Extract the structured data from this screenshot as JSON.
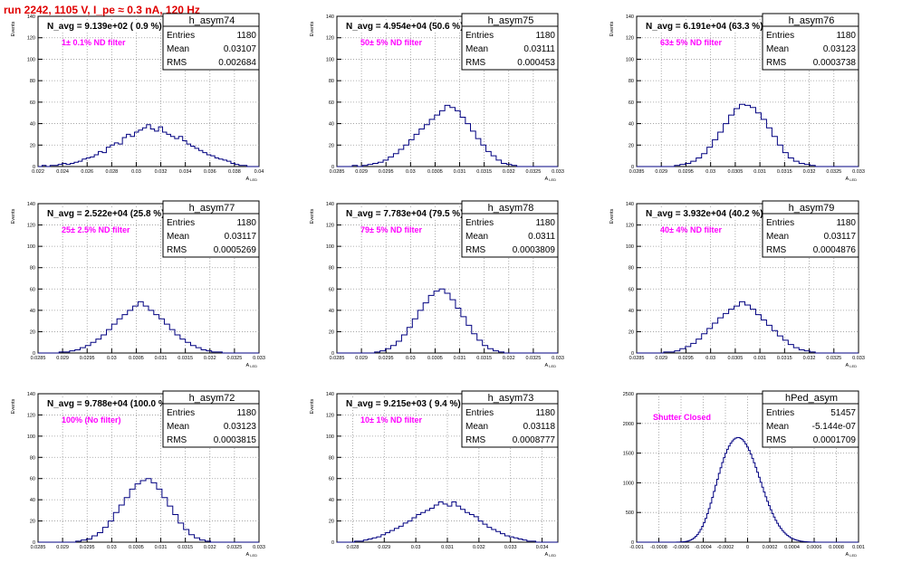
{
  "header": {
    "run_title": "run 2242,  1105 V, I_pe ≈ 0.3 nA, 120 Hz"
  },
  "style": {
    "axis_color": "#000000",
    "hist_color": "#000080",
    "annotation_color": "#ff00ff",
    "title_color": "#e00000",
    "grid": "dotted"
  },
  "chart_data": [
    {
      "type": "histogram",
      "name": "h_asym74",
      "ylabel": "Events",
      "xlabel": "A_LED",
      "navg": "N_avg = 9.139e+02 ( 0.9 %)",
      "filter": "1± 0.1% ND filter",
      "stats": {
        "entries": "1180",
        "mean": "0.03107",
        "rms": "0.002684"
      },
      "xlim": [
        0.022,
        0.04
      ],
      "ylim": [
        0,
        140
      ],
      "xticks": [
        "0.022",
        "0.024",
        "0.026",
        "0.028",
        "0.03",
        "0.032",
        "0.034",
        "0.036",
        "0.038",
        "0.04"
      ],
      "yticks": [
        "0",
        "20",
        "40",
        "60",
        "80",
        "100",
        "120",
        "140"
      ],
      "counts": [
        0,
        1,
        0,
        1,
        1,
        2,
        3,
        2,
        3,
        4,
        5,
        7,
        8,
        9,
        11,
        14,
        13,
        18,
        20,
        22,
        21,
        27,
        30,
        28,
        32,
        34,
        36,
        39,
        35,
        33,
        37,
        32,
        30,
        28,
        26,
        28,
        24,
        21,
        19,
        17,
        15,
        13,
        11,
        10,
        8,
        7,
        6,
        5,
        3,
        2,
        1,
        1,
        0,
        0,
        0
      ]
    },
    {
      "type": "histogram",
      "name": "h_asym75",
      "ylabel": "Events",
      "xlabel": "A_LED",
      "navg": "N_avg = 4.954e+04 (50.6 %)",
      "filter": "50± 5% ND filter",
      "stats": {
        "entries": "1180",
        "mean": "0.03111",
        "rms": "0.000453"
      },
      "xlim": [
        0.0285,
        0.033
      ],
      "ylim": [
        0,
        140
      ],
      "xticks": [
        "0.0285",
        "0.029",
        "0.0295",
        "0.03",
        "0.0305",
        "0.031",
        "0.0315",
        "0.032",
        "0.0325",
        "0.033"
      ],
      "yticks": [
        "0",
        "20",
        "40",
        "60",
        "80",
        "100",
        "120",
        "140"
      ],
      "counts": [
        0,
        0,
        0,
        1,
        0,
        1,
        2,
        3,
        4,
        6,
        9,
        12,
        16,
        20,
        25,
        30,
        35,
        39,
        44,
        48,
        52,
        57,
        55,
        52,
        46,
        40,
        33,
        26,
        20,
        14,
        10,
        6,
        3,
        2,
        1,
        0,
        0,
        0,
        0,
        0,
        0,
        0,
        0
      ]
    },
    {
      "type": "histogram",
      "name": "h_asym76",
      "ylabel": "Events",
      "xlabel": "A_LED",
      "navg": "N_avg = 6.191e+04 (63.3 %)",
      "filter": "63± 5% ND filter",
      "stats": {
        "entries": "1180",
        "mean": "0.03123",
        "rms": "0.0003738"
      },
      "xlim": [
        0.0285,
        0.033
      ],
      "ylim": [
        0,
        140
      ],
      "xticks": [
        "0.0285",
        "0.029",
        "0.0295",
        "0.03",
        "0.0305",
        "0.031",
        "0.0315",
        "0.032",
        "0.0325",
        "0.033"
      ],
      "yticks": [
        "0",
        "20",
        "40",
        "60",
        "80",
        "100",
        "120",
        "140"
      ],
      "counts": [
        0,
        0,
        0,
        0,
        0,
        0,
        0,
        1,
        2,
        3,
        5,
        8,
        12,
        18,
        25,
        32,
        40,
        48,
        54,
        58,
        57,
        55,
        50,
        44,
        36,
        28,
        20,
        13,
        8,
        5,
        3,
        2,
        1,
        0,
        0,
        0,
        0,
        0,
        0,
        0,
        0
      ]
    },
    {
      "type": "histogram",
      "name": "h_asym77",
      "ylabel": "Events",
      "xlabel": "A_LED",
      "navg": "N_avg = 2.522e+04 (25.8 %)",
      "filter": "25± 2.5% ND filter",
      "stats": {
        "entries": "1180",
        "mean": "0.03117",
        "rms": "0.0005269"
      },
      "xlim": [
        0.0285,
        0.033
      ],
      "ylim": [
        0,
        140
      ],
      "xticks": [
        "0.0285",
        "0.029",
        "0.0295",
        "0.03",
        "0.0305",
        "0.031",
        "0.0315",
        "0.032",
        "0.0325",
        "0.033"
      ],
      "yticks": [
        "0",
        "20",
        "40",
        "60",
        "80",
        "100",
        "120",
        "140"
      ],
      "counts": [
        0,
        0,
        0,
        0,
        1,
        1,
        2,
        3,
        5,
        7,
        10,
        13,
        17,
        22,
        27,
        32,
        36,
        40,
        44,
        48,
        44,
        40,
        36,
        32,
        27,
        22,
        17,
        13,
        10,
        7,
        5,
        3,
        2,
        1,
        1,
        0,
        0,
        0,
        0,
        0,
        0,
        0
      ]
    },
    {
      "type": "histogram",
      "name": "h_asym78",
      "ylabel": "Events",
      "xlabel": "A_LED",
      "navg": "N_avg = 7.783e+04 (79.5 %)",
      "filter": "79± 5% ND filter",
      "stats": {
        "entries": "1180",
        "mean": "0.0311",
        "rms": "0.0003809"
      },
      "xlim": [
        0.0285,
        0.033
      ],
      "ylim": [
        0,
        140
      ],
      "xticks": [
        "0.0285",
        "0.029",
        "0.0295",
        "0.03",
        "0.0305",
        "0.031",
        "0.0315",
        "0.032",
        "0.0325",
        "0.033"
      ],
      "yticks": [
        "0",
        "20",
        "40",
        "60",
        "80",
        "100",
        "120",
        "140"
      ],
      "counts": [
        0,
        0,
        0,
        0,
        0,
        0,
        0,
        1,
        2,
        4,
        7,
        11,
        17,
        24,
        32,
        40,
        47,
        54,
        58,
        60,
        56,
        50,
        42,
        34,
        26,
        18,
        12,
        7,
        4,
        2,
        1,
        0,
        0,
        0,
        0,
        0,
        0,
        0,
        0,
        0,
        0
      ]
    },
    {
      "type": "histogram",
      "name": "h_asym79",
      "ylabel": "Events",
      "xlabel": "A_LED",
      "navg": "N_avg = 3.932e+04 (40.2 %)",
      "filter": "40± 4% ND filter",
      "stats": {
        "entries": "1180",
        "mean": "0.03117",
        "rms": "0.0004876"
      },
      "xlim": [
        0.0285,
        0.033
      ],
      "ylim": [
        0,
        140
      ],
      "xticks": [
        "0.0285",
        "0.029",
        "0.0295",
        "0.03",
        "0.0305",
        "0.031",
        "0.0315",
        "0.032",
        "0.0325",
        "0.033"
      ],
      "yticks": [
        "0",
        "20",
        "40",
        "60",
        "80",
        "100",
        "120",
        "140"
      ],
      "counts": [
        0,
        0,
        0,
        0,
        0,
        1,
        1,
        2,
        4,
        6,
        9,
        13,
        18,
        23,
        28,
        33,
        37,
        41,
        44,
        48,
        45,
        41,
        36,
        31,
        26,
        21,
        16,
        12,
        8,
        5,
        3,
        2,
        1,
        0,
        0,
        0,
        0,
        0,
        0,
        0,
        0
      ]
    },
    {
      "type": "histogram",
      "name": "h_asym72",
      "ylabel": "Events",
      "xlabel": "A_LED",
      "navg": "N_avg = 9.788e+04 (100.0 %)",
      "filter": "100% (No filter)",
      "stats": {
        "entries": "1180",
        "mean": "0.03123",
        "rms": "0.0003815"
      },
      "xlim": [
        0.0285,
        0.033
      ],
      "ylim": [
        0,
        140
      ],
      "xticks": [
        "0.0285",
        "0.029",
        "0.0295",
        "0.03",
        "0.0305",
        "0.031",
        "0.0315",
        "0.032",
        "0.0325",
        "0.033"
      ],
      "yticks": [
        "0",
        "20",
        "40",
        "60",
        "80",
        "100",
        "120",
        "140"
      ],
      "counts": [
        0,
        0,
        0,
        0,
        0,
        0,
        0,
        1,
        2,
        3,
        6,
        9,
        14,
        20,
        28,
        35,
        42,
        50,
        55,
        58,
        60,
        56,
        50,
        42,
        34,
        26,
        18,
        12,
        7,
        4,
        2,
        1,
        0,
        0,
        0,
        0,
        0,
        0,
        0,
        0,
        0
      ]
    },
    {
      "type": "histogram",
      "name": "h_asym73",
      "ylabel": "Events",
      "xlabel": "A_LED",
      "navg": "N_avg = 9.215e+03 ( 9.4 %)",
      "filter": "10± 1% ND filter",
      "stats": {
        "entries": "1180",
        "mean": "0.03118",
        "rms": "0.0008777"
      },
      "xlim": [
        0.0275,
        0.0345
      ],
      "ylim": [
        0,
        140
      ],
      "xticks": [
        "0.028",
        "0.029",
        "0.03",
        "0.031",
        "0.032",
        "0.033",
        "0.034"
      ],
      "yticks": [
        "0",
        "20",
        "40",
        "60",
        "80",
        "100",
        "120",
        "140"
      ],
      "counts": [
        0,
        0,
        0,
        0,
        1,
        1,
        2,
        3,
        4,
        5,
        7,
        9,
        11,
        13,
        15,
        18,
        20,
        23,
        26,
        28,
        30,
        32,
        35,
        38,
        36,
        34,
        38,
        34,
        31,
        28,
        26,
        24,
        20,
        17,
        14,
        12,
        10,
        8,
        6,
        5,
        4,
        3,
        2,
        1,
        1,
        0,
        0,
        0,
        0,
        0
      ]
    },
    {
      "type": "histogram",
      "name": "hPed_asym",
      "ylabel": "",
      "xlabel": "A_LED",
      "navg": "",
      "filter": "Shutter Closed",
      "stats": {
        "entries": "51457",
        "mean": "-5.144e-07",
        "rms": "0.0001709"
      },
      "xlim": [
        -0.001,
        0.001
      ],
      "ylim": [
        0,
        2500
      ],
      "xticks": [
        "-0.001",
        "-0.0008",
        "-0.0006",
        "-0.0004",
        "-0.0002",
        "0",
        "0.0002",
        "0.0004",
        "0.0006",
        "0.0008",
        "0.001"
      ],
      "yticks": [
        "0",
        "500",
        "1000",
        "1500",
        "2000",
        "2500"
      ],
      "counts": [
        0,
        0,
        0,
        0,
        0,
        0,
        0,
        0,
        0,
        0,
        0,
        0,
        0,
        0,
        0,
        0,
        0,
        0,
        0,
        0,
        0,
        0,
        0,
        0,
        1,
        2,
        3,
        5,
        8,
        12,
        18,
        26,
        37,
        52,
        72,
        97,
        128,
        167,
        213,
        267,
        330,
        401,
        480,
        566,
        658,
        755,
        856,
        958,
        1059,
        1158,
        1253,
        1342,
        1424,
        1498,
        1564,
        1620,
        1668,
        1706,
        1735,
        1753,
        1762,
        1760,
        1748,
        1726,
        1694,
        1652,
        1603,
        1546,
        1482,
        1412,
        1337,
        1259,
        1177,
        1094,
        1010,
        926,
        844,
        764,
        688,
        615,
        546,
        482,
        423,
        368,
        318,
        273,
        233,
        197,
        165,
        137,
        113,
        93,
        75,
        60,
        48,
        38,
        30,
        23,
        17,
        13,
        9,
        7,
        5,
        3,
        2,
        1,
        1,
        0,
        0,
        0,
        0,
        0,
        0,
        0,
        0,
        0,
        0,
        0,
        0,
        0,
        0,
        0,
        0,
        0,
        0,
        0,
        0,
        0,
        0,
        0,
        0,
        0,
        0
      ]
    }
  ]
}
